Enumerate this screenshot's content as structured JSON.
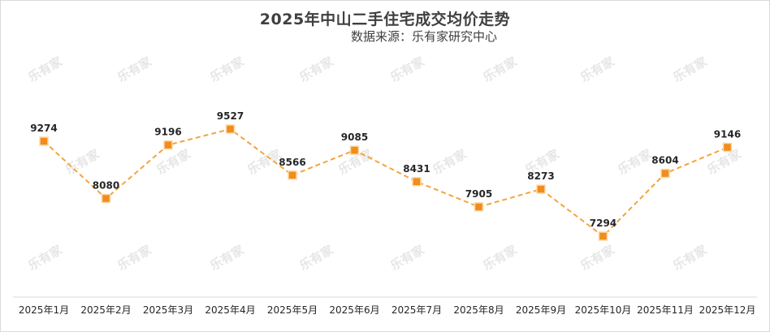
{
  "chart_data": {
    "type": "line",
    "title": "2025年中山二手住宅成交均价走势",
    "subtitle": "数据来源：乐有家研究中心",
    "categories": [
      "2025年1月",
      "2025年2月",
      "2025年3月",
      "2025年4月",
      "2025年5月",
      "2025年6月",
      "2025年7月",
      "2025年8月",
      "2025年9月",
      "2025年10月",
      "2025年11月",
      "2025年12月"
    ],
    "series": [
      {
        "values": [
          9274,
          8080,
          9196,
          9527,
          8566,
          9085,
          8431,
          7905,
          8273,
          7294,
          8604,
          9146
        ]
      }
    ],
    "xlabel": "",
    "ylabel": "",
    "grid": false,
    "line_color": "#F4A43C",
    "marker_color": "#F28C1A",
    "line_style": "dashed",
    "watermark": "乐有家"
  }
}
